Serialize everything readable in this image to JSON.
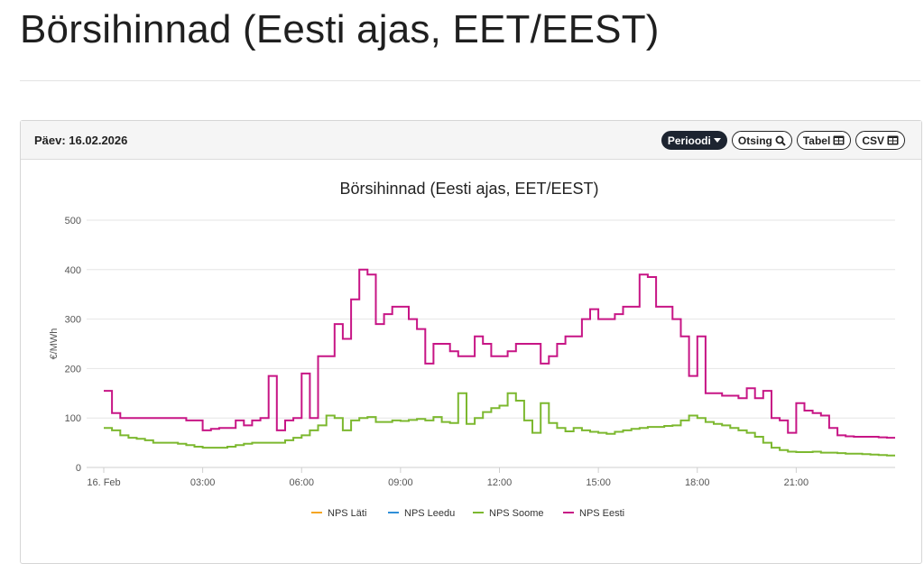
{
  "page": {
    "title": "Börsihinnad (Eesti ajas, EET/EEST)"
  },
  "panel": {
    "date_label": "Päev: 16.02.2026",
    "buttons": [
      {
        "label": "Perioodi",
        "icon": "caret-down-icon"
      },
      {
        "label": "Otsing",
        "icon": "search-icon"
      },
      {
        "label": "Tabel",
        "icon": "table-icon"
      },
      {
        "label": "CSV",
        "icon": "table-icon"
      }
    ]
  },
  "colors": {
    "lati": "#f5a623",
    "leedu": "#2f8fd8",
    "soome": "#7cb82f",
    "eesti": "#c71585",
    "grid": "#e6e6e6"
  },
  "chart_data": {
    "type": "line",
    "title": "Börsihinnad (Eesti ajas, EET/EEST)",
    "ylabel": "€/MWh",
    "xlabel": "",
    "ylim": [
      0,
      500
    ],
    "yticks": [
      0,
      100,
      200,
      300,
      400,
      500
    ],
    "xlim": [
      0,
      24
    ],
    "xticks": [
      {
        "x": 0,
        "label": "16. Feb"
      },
      {
        "x": 3,
        "label": "03:00"
      },
      {
        "x": 6,
        "label": "06:00"
      },
      {
        "x": 9,
        "label": "09:00"
      },
      {
        "x": 12,
        "label": "12:00"
      },
      {
        "x": 15,
        "label": "15:00"
      },
      {
        "x": 18,
        "label": "18:00"
      },
      {
        "x": 21,
        "label": "21:00"
      }
    ],
    "step": 0.25,
    "grid": true,
    "legend_position": "bottom",
    "series": [
      {
        "name": "NPS Läti",
        "color": "#f5a623",
        "values": []
      },
      {
        "name": "NPS Leedu",
        "color": "#2f8fd8",
        "values": []
      },
      {
        "name": "NPS Soome",
        "color": "#7cb82f",
        "values": [
          80,
          75,
          65,
          60,
          58,
          55,
          50,
          50,
          50,
          48,
          45,
          42,
          40,
          40,
          40,
          42,
          45,
          48,
          50,
          50,
          50,
          50,
          55,
          60,
          65,
          75,
          85,
          105,
          100,
          75,
          95,
          100,
          102,
          92,
          92,
          95,
          94,
          96,
          98,
          95,
          102,
          92,
          90,
          150,
          88,
          100,
          112,
          120,
          125,
          150,
          135,
          95,
          70,
          130,
          90,
          80,
          73,
          80,
          75,
          72,
          70,
          68,
          72,
          75,
          78,
          80,
          82,
          82,
          84,
          85,
          95,
          105,
          100,
          92,
          88,
          85,
          80,
          75,
          70,
          62,
          50,
          40,
          35,
          32,
          31,
          31,
          32,
          30,
          30,
          29,
          28,
          28,
          27,
          26,
          25,
          24
        ]
      },
      {
        "name": "NPS Eesti",
        "color": "#c71585",
        "values": [
          155,
          110,
          100,
          100,
          100,
          100,
          100,
          100,
          100,
          100,
          95,
          95,
          75,
          78,
          80,
          80,
          95,
          85,
          95,
          100,
          185,
          75,
          95,
          100,
          190,
          100,
          225,
          225,
          290,
          260,
          340,
          400,
          390,
          290,
          310,
          325,
          325,
          300,
          280,
          210,
          250,
          250,
          235,
          225,
          225,
          265,
          250,
          225,
          225,
          235,
          250,
          250,
          250,
          210,
          225,
          250,
          265,
          265,
          300,
          320,
          300,
          300,
          310,
          325,
          325,
          390,
          385,
          325,
          325,
          300,
          265,
          185,
          265,
          150,
          150,
          145,
          145,
          140,
          160,
          140,
          155,
          100,
          95,
          70,
          130,
          115,
          110,
          105,
          80,
          65,
          63,
          62,
          62,
          62,
          61,
          60
        ]
      }
    ]
  }
}
